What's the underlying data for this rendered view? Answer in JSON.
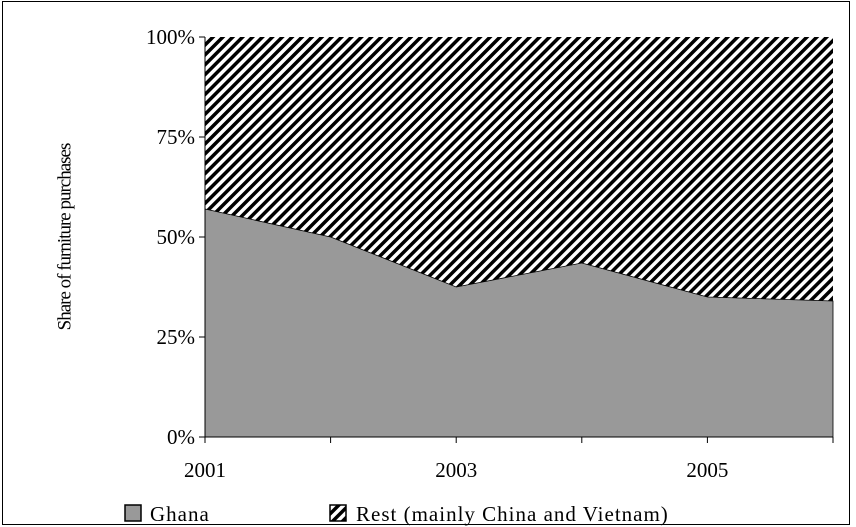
{
  "chart_data": {
    "type": "area",
    "stacked": true,
    "x": [
      2001,
      2002,
      2003,
      2004,
      2005,
      2006
    ],
    "x_tick_labels": [
      "2001",
      "2003",
      "2005"
    ],
    "y_tick_labels": [
      "0%",
      "25%",
      "50%",
      "75%",
      "100%"
    ],
    "ylim": [
      0,
      100
    ],
    "ylabel": "Share of furniture purchases",
    "series": [
      {
        "name": "Ghana",
        "values": [
          57,
          50,
          37.5,
          43.5,
          35,
          34
        ],
        "color": "#999999",
        "pattern": "solid"
      },
      {
        "name": "Rest (mainly China and Vietnam)",
        "values": [
          43,
          50,
          62.5,
          56.5,
          65,
          66
        ],
        "color": "#000000",
        "pattern": "diagonal-stripes"
      }
    ],
    "grid": false,
    "legend_position": "bottom"
  }
}
